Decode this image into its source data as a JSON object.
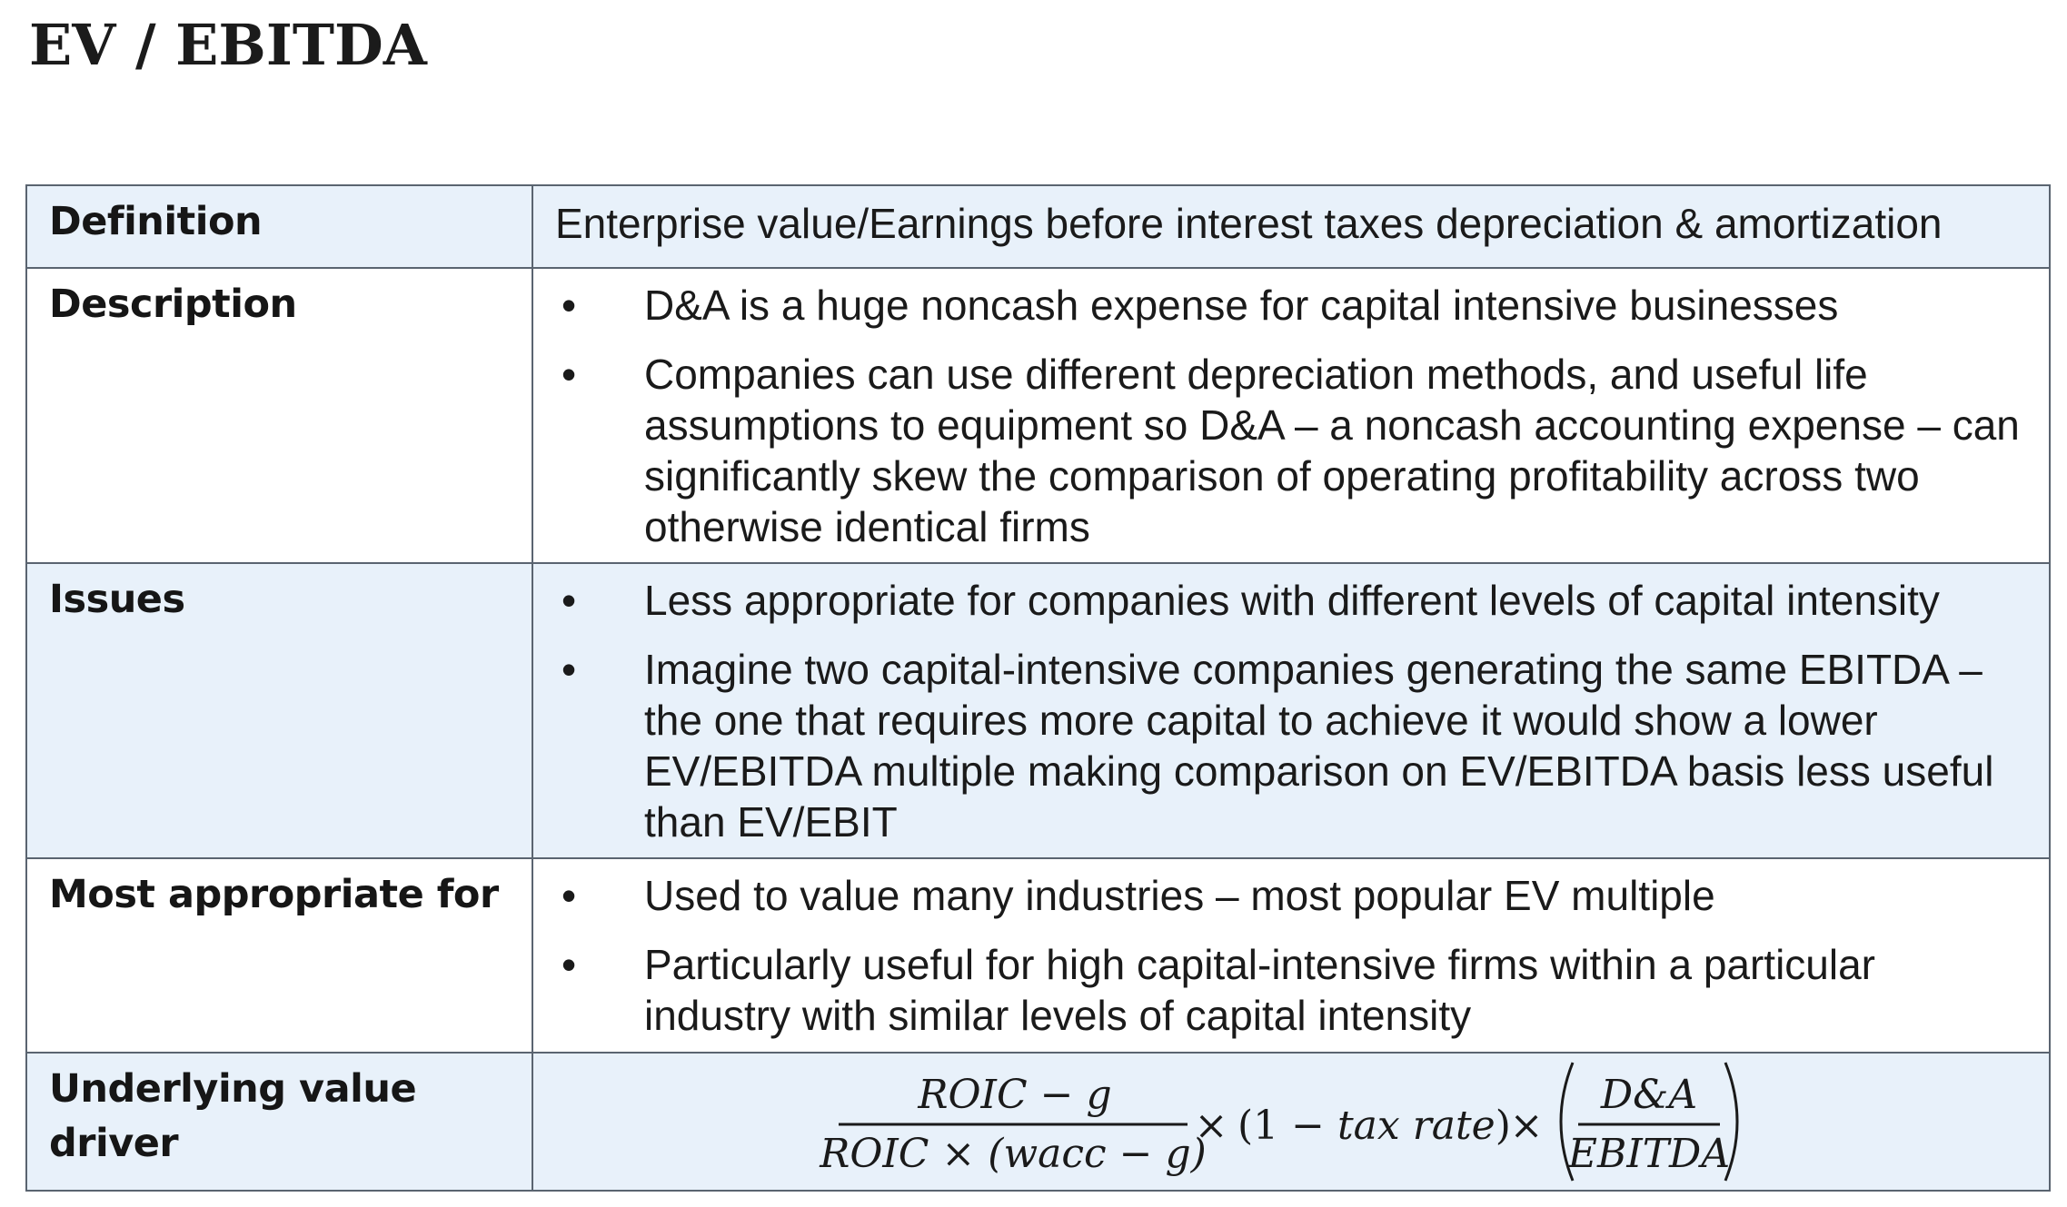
{
  "page_title": "EV / EBITDA",
  "rows": [
    {
      "label": "Definition",
      "text": "Enterprise value/Earnings before interest taxes depreciation & amortization"
    },
    {
      "label": "Description",
      "bullets": [
        "D&A is a huge noncash expense for capital intensive businesses",
        "Companies can use different depreciation methods, and useful life assumptions to equipment so D&A – a noncash accounting expense – can significantly skew the comparison of operating profitability across two otherwise identical firms"
      ]
    },
    {
      "label": "Issues",
      "bullets": [
        "Less appropriate for companies with different levels of capital intensity",
        "Imagine two capital-intensive companies generating the same EBITDA – the one that requires more capital to achieve it would show a lower EV/EBITDA multiple making comparison on EV/EBITDA basis less useful than EV/EBIT"
      ]
    },
    {
      "label": "Most appropriate for",
      "bullets": [
        "Used to value many industries – most popular EV multiple",
        "Particularly useful for high capital-intensive firms within a particular industry with similar levels of capital intensity"
      ]
    },
    {
      "label": "Underlying value driver",
      "formula": {
        "fraction1_numerator": "ROIC − g",
        "fraction1_denominator": "ROIC × (wacc − g)",
        "times1": "×",
        "middle_open": "(1 − ",
        "middle_var": "tax rate",
        "middle_close": ")",
        "times2": "×",
        "fraction2_numerator": "D&A",
        "fraction2_denominator": "EBITDA"
      }
    }
  ],
  "bullet_glyph": "•"
}
